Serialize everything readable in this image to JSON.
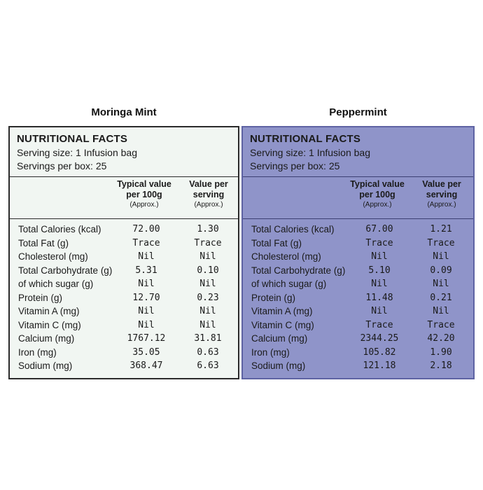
{
  "panels": [
    {
      "title": "Moringa Mint",
      "facts_title": "NUTRITIONAL FACTS",
      "serving_size": "Serving size: 1 Infusion bag",
      "servings_per_box": "Servings per box: 25",
      "columns": [
        {
          "line1": "Typical value",
          "line2": "per 100g",
          "line3": "(Approx.)"
        },
        {
          "line1": "Value per",
          "line2": "serving",
          "line3": "(Approx.)"
        }
      ],
      "rows": [
        {
          "nutrient": "Total Calories (kcal)",
          "per100g": "72.00",
          "perServing": "1.30"
        },
        {
          "nutrient": "Total Fat (g)",
          "per100g": "Trace",
          "perServing": "Trace"
        },
        {
          "nutrient": "Cholesterol (mg)",
          "per100g": "Nil",
          "perServing": "Nil"
        },
        {
          "nutrient": "Total Carbohydrate (g)",
          "per100g": "5.31",
          "perServing": "0.10"
        },
        {
          "nutrient": "of which sugar (g)",
          "per100g": "Nil",
          "perServing": "Nil"
        },
        {
          "nutrient": "Protein (g)",
          "per100g": "12.70",
          "perServing": "0.23"
        },
        {
          "nutrient": "Vitamin A (mg)",
          "per100g": "Nil",
          "perServing": "Nil"
        },
        {
          "nutrient": "Vitamin C (mg)",
          "per100g": "Nil",
          "perServing": "Nil"
        },
        {
          "nutrient": "Calcium (mg)",
          "per100g": "1767.12",
          "perServing": "31.81"
        },
        {
          "nutrient": "Iron (mg)",
          "per100g": "35.05",
          "perServing": "0.63"
        },
        {
          "nutrient": "Sodium (mg)",
          "per100g": "368.47",
          "perServing": "6.63"
        }
      ]
    },
    {
      "title": "Peppermint",
      "facts_title": "NUTRITIONAL FACTS",
      "serving_size": "Serving size: 1 Infusion bag",
      "servings_per_box": "Servings per box: 25",
      "columns": [
        {
          "line1": "Typical value",
          "line2": "per 100g",
          "line3": "(Approx.)"
        },
        {
          "line1": "Value per",
          "line2": "serving",
          "line3": "(Approx.)"
        }
      ],
      "rows": [
        {
          "nutrient": "Total Calories (kcal)",
          "per100g": "67.00",
          "perServing": "1.21"
        },
        {
          "nutrient": "Total Fat (g)",
          "per100g": "Trace",
          "perServing": "Trace"
        },
        {
          "nutrient": "Cholesterol (mg)",
          "per100g": "Nil",
          "perServing": "Nil"
        },
        {
          "nutrient": "Total Carbohydrate (g)",
          "per100g": "5.10",
          "perServing": "0.09"
        },
        {
          "nutrient": "of which sugar (g)",
          "per100g": "Nil",
          "perServing": "Nil"
        },
        {
          "nutrient": "Protein (g)",
          "per100g": "11.48",
          "perServing": "0.21"
        },
        {
          "nutrient": "Vitamin A (mg)",
          "per100g": "Nil",
          "perServing": "Nil"
        },
        {
          "nutrient": "Vitamin C (mg)",
          "per100g": "Trace",
          "perServing": "Trace"
        },
        {
          "nutrient": "Calcium (mg)",
          "per100g": "2344.25",
          "perServing": "42.20"
        },
        {
          "nutrient": "Iron (mg)",
          "per100g": "105.82",
          "perServing": "1.90"
        },
        {
          "nutrient": "Sodium (mg)",
          "per100g": "121.18",
          "perServing": "2.18"
        }
      ]
    }
  ],
  "colors": {
    "moringa_panel_bg": "#f1f6f2",
    "peppermint_panel_bg": "#8f94c9"
  }
}
